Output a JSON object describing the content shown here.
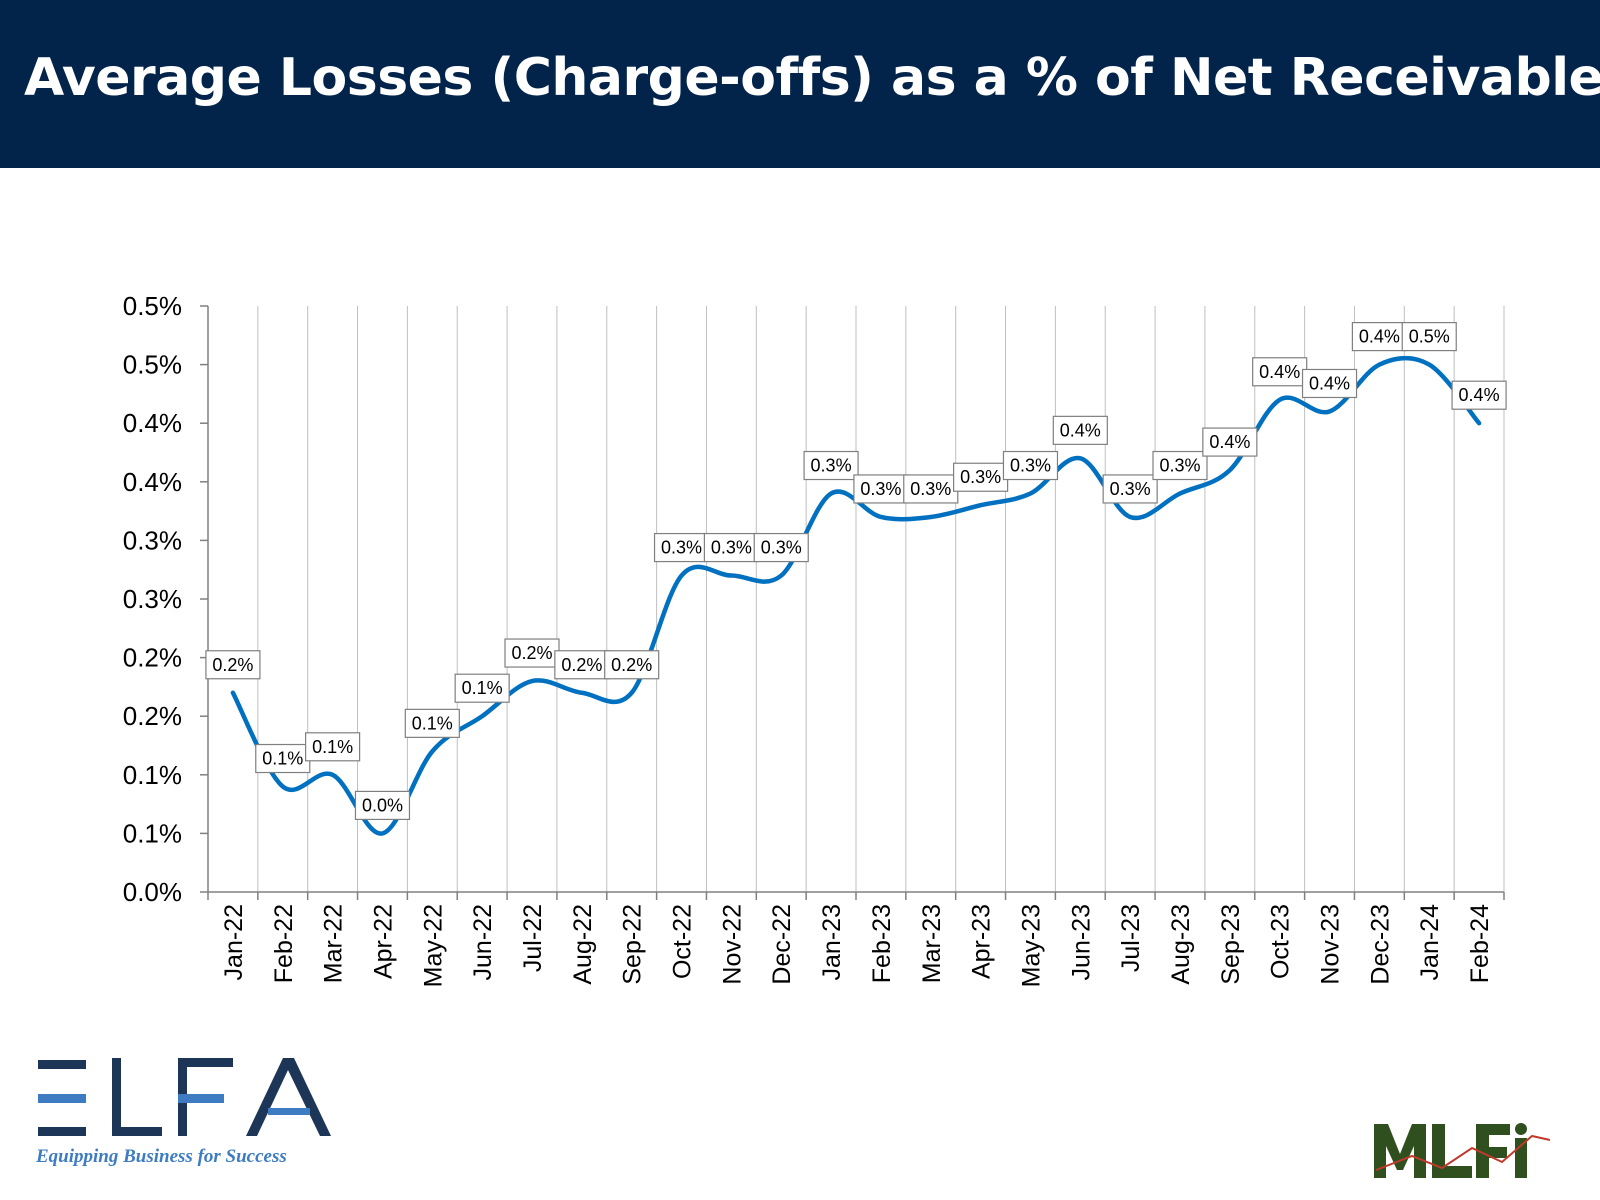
{
  "header": {
    "title": "Average Losses (Charge-offs) as a % of Net Receivables"
  },
  "colors": {
    "header_bg": "#03244a",
    "line": "#0070c0",
    "grid": "#bfbfbf",
    "elfa_dark": "#1d3557",
    "elfa_light": "#3d7cc2",
    "mlfi": "#2f4f1f"
  },
  "chart_data": {
    "type": "line",
    "title": "",
    "xlabel": "",
    "ylabel": "",
    "ylim": [
      0,
      0.5
    ],
    "y_ticks": [
      "0.0%",
      "0.1%",
      "0.1%",
      "0.2%",
      "0.2%",
      "0.3%",
      "0.3%",
      "0.4%",
      "0.4%",
      "0.5%",
      "0.5%"
    ],
    "y_tick_values": [
      0,
      0.05,
      0.1,
      0.15,
      0.2,
      0.25,
      0.3,
      0.35,
      0.4,
      0.45,
      0.5
    ],
    "grid": "vertical",
    "legend": "none",
    "categories": [
      "Jan-22",
      "Feb-22",
      "Mar-22",
      "Apr-22",
      "May-22",
      "Jun-22",
      "Jul-22",
      "Aug-22",
      "Sep-22",
      "Oct-22",
      "Nov-22",
      "Dec-22",
      "Jan-23",
      "Feb-23",
      "Mar-23",
      "Apr-23",
      "May-23",
      "Jun-23",
      "Jul-23",
      "Aug-23",
      "Sep-23",
      "Oct-23",
      "Nov-23",
      "Dec-23",
      "Jan-24",
      "Feb-24"
    ],
    "series": [
      {
        "values": [
          0.17,
          0.09,
          0.1,
          0.05,
          0.12,
          0.15,
          0.18,
          0.17,
          0.17,
          0.27,
          0.27,
          0.27,
          0.34,
          0.32,
          0.32,
          0.33,
          0.34,
          0.37,
          0.32,
          0.34,
          0.36,
          0.42,
          0.41,
          0.45,
          0.45,
          0.4
        ],
        "labels": [
          "0.2%",
          "0.1%",
          "0.1%",
          "0.0%",
          "0.1%",
          "0.1%",
          "0.2%",
          "0.2%",
          "0.2%",
          "0.3%",
          "0.3%",
          "0.3%",
          "0.3%",
          "0.3%",
          "0.3%",
          "0.3%",
          "0.3%",
          "0.4%",
          "0.3%",
          "0.3%",
          "0.4%",
          "0.4%",
          "0.4%",
          "0.4%",
          "0.5%",
          "0.4%"
        ]
      }
    ]
  },
  "logos": {
    "elfa": {
      "text": "ELFA",
      "tagline": "Equipping Business for Success"
    },
    "mlfi": {
      "text": "MLFi"
    }
  }
}
